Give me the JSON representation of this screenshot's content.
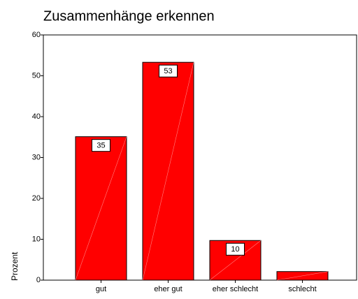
{
  "chart_data": {
    "type": "bar",
    "title": "Zusammenhänge erkennen",
    "y_label": "Prozent",
    "categories": [
      "gut",
      "eher gut",
      "eher schlecht",
      "schlecht"
    ],
    "values": [
      35.1,
      53.3,
      9.7,
      2.1
    ],
    "value_labels": [
      "35",
      "53",
      "10",
      null
    ],
    "color": "#ff0000",
    "ylim": [
      0,
      60
    ],
    "yticks": [
      0,
      10,
      20,
      30,
      40,
      50,
      60
    ],
    "grid": false
  }
}
